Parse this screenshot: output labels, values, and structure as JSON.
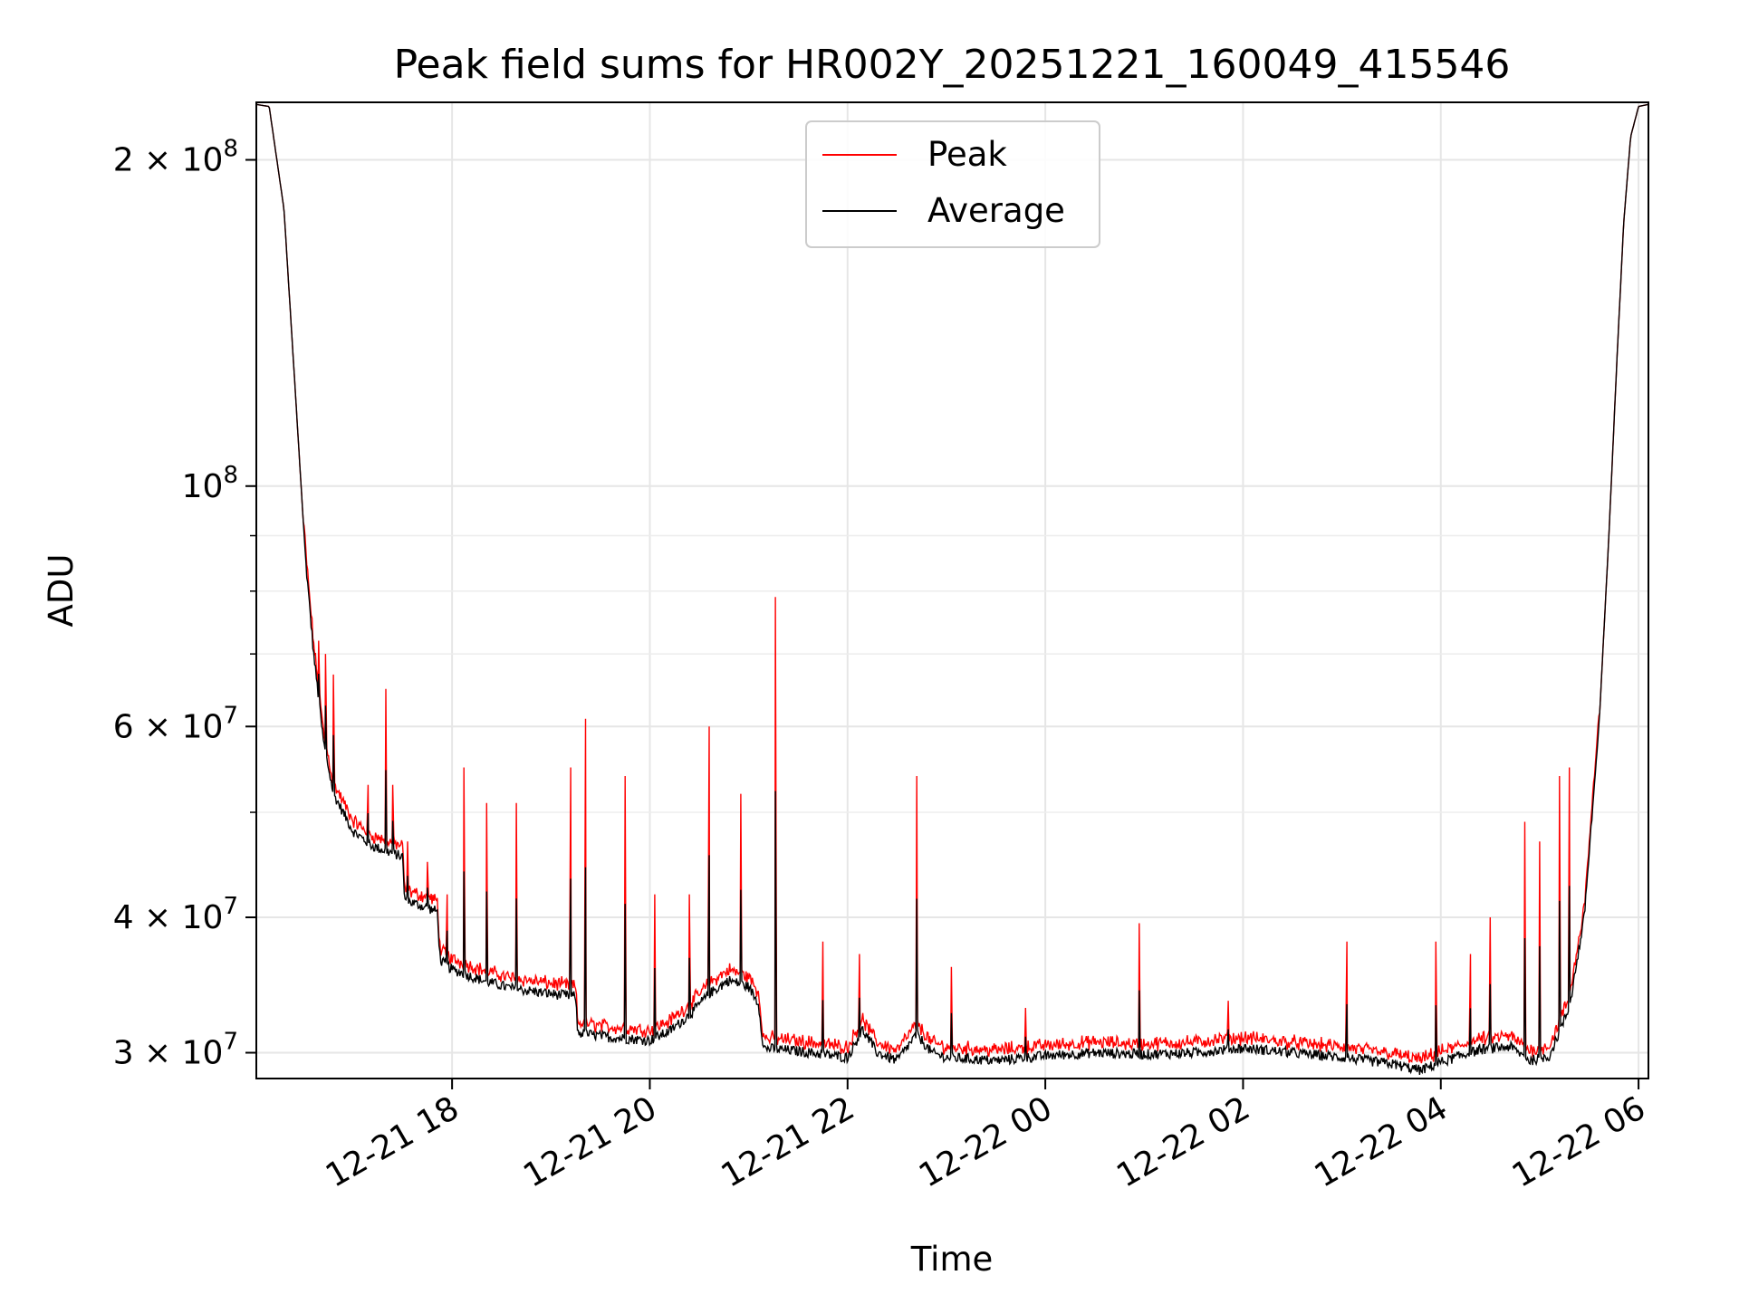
{
  "chart_data": {
    "type": "line",
    "title": "Peak field sums for HR002Y_20251221_160049_415546",
    "xlabel": "Time",
    "ylabel": "ADU",
    "y_scale": "log",
    "ylim": [
      28400000,
      226000000
    ],
    "x_unit": "hours since 2025-12-21 00:00",
    "xlim": [
      16.02,
      30.1
    ],
    "grid": true,
    "legend_position": "upper center",
    "x_ticks": [
      {
        "value": 18,
        "label": "12-21 18"
      },
      {
        "value": 20,
        "label": "12-21 20"
      },
      {
        "value": 22,
        "label": "12-21 22"
      },
      {
        "value": 24,
        "label": "12-22 00"
      },
      {
        "value": 26,
        "label": "12-22 02"
      },
      {
        "value": 28,
        "label": "12-22 04"
      },
      {
        "value": 30,
        "label": "12-22 06"
      }
    ],
    "y_ticks": [
      {
        "value": 30000000,
        "base": "3 × 10",
        "exp": "7"
      },
      {
        "value": 40000000,
        "base": "4 × 10",
        "exp": "7"
      },
      {
        "value": 60000000,
        "base": "6 × 10",
        "exp": "7"
      },
      {
        "value": 100000000,
        "base": "10",
        "exp": "8"
      },
      {
        "value": 200000000,
        "base": "2 × 10",
        "exp": "8"
      }
    ],
    "y_minor_ticks": [
      50000000,
      70000000,
      80000000,
      90000000
    ],
    "series": [
      {
        "name": "Peak",
        "color": "#ff0000"
      },
      {
        "name": "Average",
        "color": "#000000"
      }
    ],
    "baseline_points": [
      [
        16.02,
        225000000
      ],
      [
        16.15,
        224000000
      ],
      [
        16.3,
        180000000
      ],
      [
        16.42,
        120000000
      ],
      [
        16.52,
        85000000
      ],
      [
        16.6,
        70000000
      ],
      [
        16.7,
        58000000
      ],
      [
        16.8,
        52000000
      ],
      [
        17.0,
        48000000
      ],
      [
        17.2,
        46500000
      ],
      [
        17.5,
        45500000
      ],
      [
        17.52,
        41500000
      ],
      [
        17.85,
        40500000
      ],
      [
        17.88,
        36500000
      ],
      [
        18.0,
        35800000
      ],
      [
        18.3,
        35000000
      ],
      [
        18.6,
        34400000
      ],
      [
        19.0,
        34000000
      ],
      [
        19.25,
        33800000
      ],
      [
        19.27,
        31300000
      ],
      [
        19.6,
        31000000
      ],
      [
        20.0,
        30800000
      ],
      [
        20.2,
        31400000
      ],
      [
        20.4,
        32500000
      ],
      [
        20.6,
        34000000
      ],
      [
        20.8,
        35000000
      ],
      [
        21.0,
        34500000
      ],
      [
        21.1,
        33300000
      ],
      [
        21.15,
        30300000
      ],
      [
        21.5,
        30100000
      ],
      [
        22.0,
        29700000
      ],
      [
        22.15,
        31500000
      ],
      [
        22.3,
        30000000
      ],
      [
        22.5,
        29500000
      ],
      [
        22.7,
        31200000
      ],
      [
        22.85,
        30000000
      ],
      [
        23.0,
        29700000
      ],
      [
        23.5,
        29500000
      ],
      [
        24.0,
        29800000
      ],
      [
        24.5,
        30000000
      ],
      [
        25.0,
        29900000
      ],
      [
        25.5,
        30000000
      ],
      [
        26.0,
        30300000
      ],
      [
        26.5,
        30000000
      ],
      [
        27.0,
        29700000
      ],
      [
        27.5,
        29300000
      ],
      [
        27.8,
        28900000
      ],
      [
        28.0,
        29400000
      ],
      [
        28.4,
        30200000
      ],
      [
        28.7,
        30400000
      ],
      [
        28.9,
        29500000
      ],
      [
        29.1,
        29800000
      ],
      [
        29.3,
        33000000
      ],
      [
        29.45,
        40000000
      ],
      [
        29.6,
        60000000
      ],
      [
        29.7,
        90000000
      ],
      [
        29.78,
        130000000
      ],
      [
        29.85,
        175000000
      ],
      [
        29.92,
        210000000
      ],
      [
        30.0,
        224000000
      ],
      [
        30.1,
        225000000
      ]
    ],
    "peak_spikes": [
      [
        16.65,
        72000000
      ],
      [
        16.72,
        70000000
      ],
      [
        16.8,
        67000000
      ],
      [
        17.15,
        53000000
      ],
      [
        17.33,
        65000000
      ],
      [
        17.4,
        53000000
      ],
      [
        17.55,
        47000000
      ],
      [
        17.75,
        45000000
      ],
      [
        17.95,
        42000000
      ],
      [
        18.12,
        55000000
      ],
      [
        18.35,
        51000000
      ],
      [
        18.65,
        51000000
      ],
      [
        19.2,
        55000000
      ],
      [
        19.35,
        61000000
      ],
      [
        19.75,
        54000000
      ],
      [
        20.05,
        42000000
      ],
      [
        20.4,
        42000000
      ],
      [
        20.6,
        60000000
      ],
      [
        20.92,
        52000000
      ],
      [
        21.27,
        79000000
      ],
      [
        21.75,
        38000000
      ],
      [
        22.12,
        37000000
      ],
      [
        22.7,
        54000000
      ],
      [
        23.05,
        36000000
      ],
      [
        23.8,
        33000000
      ],
      [
        24.95,
        39500000
      ],
      [
        25.85,
        33500000
      ],
      [
        27.05,
        38000000
      ],
      [
        27.95,
        38000000
      ],
      [
        28.3,
        37000000
      ],
      [
        28.5,
        40000000
      ],
      [
        28.85,
        49000000
      ],
      [
        29.0,
        47000000
      ],
      [
        29.2,
        54000000
      ],
      [
        29.3,
        55000000
      ]
    ]
  }
}
